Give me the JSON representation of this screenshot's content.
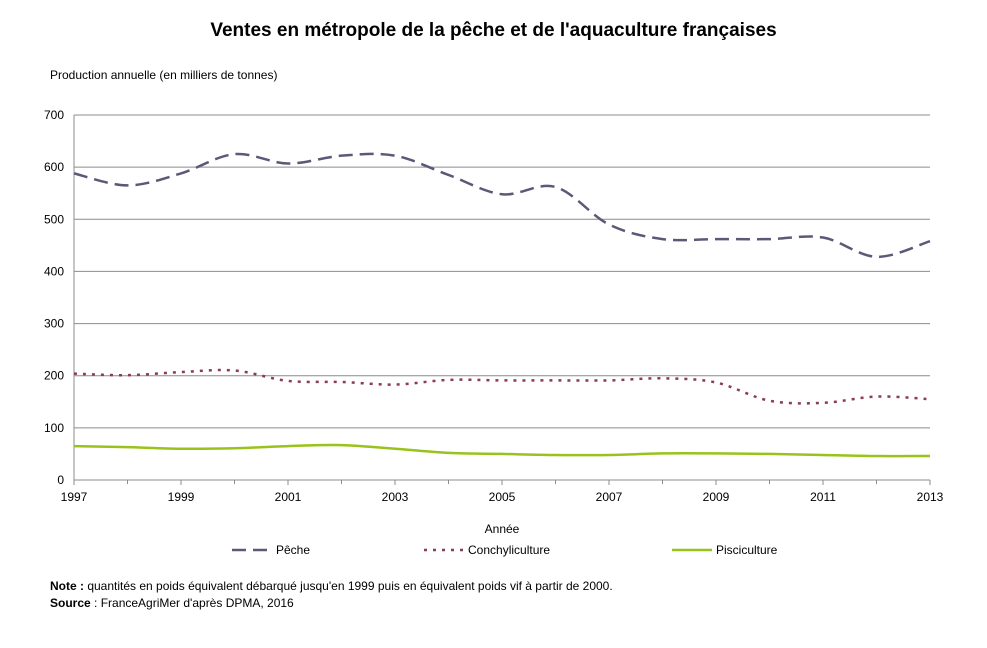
{
  "title": "Ventes en métropole de la pêche et de l'aquaculture françaises",
  "notes": {
    "note_label": "Note :",
    "note_text": " quantités en poids équivalent débarqué jusqu'en 1999 puis en équivalent poids vif à partir de 2000.",
    "source_label": "Source",
    "source_text": " : FranceAgriMer d'après DPMA, 2016"
  },
  "chart_data": {
    "type": "line",
    "title": "Ventes en métropole de la pêche et de l'aquaculture françaises",
    "ylabel": "Production annuelle (en milliers de tonnes)",
    "xlabel": "Année",
    "xlim": [
      1997,
      2013
    ],
    "ylim": [
      0,
      700
    ],
    "xticks": [
      "1997",
      "1999",
      "2001",
      "2003",
      "2005",
      "2007",
      "2009",
      "2011",
      "2013"
    ],
    "yticks": [
      "0",
      "100",
      "200",
      "300",
      "400",
      "500",
      "600",
      "700"
    ],
    "grid": true,
    "legend_position": "bottom",
    "x": [
      1997,
      1998,
      1999,
      2000,
      2001,
      2002,
      2003,
      2004,
      2005,
      2006,
      2007,
      2008,
      2009,
      2010,
      2011,
      2012,
      2013
    ],
    "series": [
      {
        "name": "Pêche",
        "style": "dashed",
        "color": "#5a5a78",
        "values": [
          588,
          565,
          588,
          625,
          607,
          622,
          622,
          585,
          548,
          562,
          490,
          462,
          462,
          462,
          465,
          428,
          458
        ]
      },
      {
        "name": "Conchyliculture",
        "style": "dotted",
        "color": "#8b3a5a",
        "values": [
          204,
          201,
          207,
          210,
          190,
          188,
          183,
          192,
          191,
          191,
          191,
          195,
          187,
          152,
          148,
          160,
          155
        ]
      },
      {
        "name": "Pisciculture",
        "style": "solid",
        "color": "#99c31c",
        "values": [
          65,
          63,
          60,
          61,
          65,
          67,
          60,
          52,
          50,
          48,
          48,
          51,
          51,
          50,
          48,
          46,
          46
        ]
      }
    ]
  }
}
